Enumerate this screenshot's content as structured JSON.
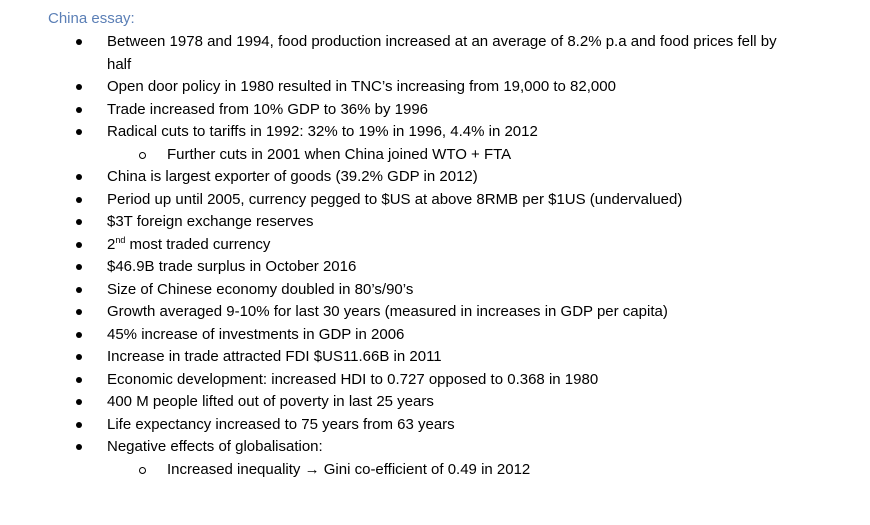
{
  "heading": "China essay:",
  "items": [
    {
      "level": 1,
      "text": "Between 1978 and 1994, food production increased at an average of 8.2% p.a and food prices fell by half"
    },
    {
      "level": 1,
      "text": "Open door policy in 1980 resulted in TNC’s increasing from 19,000 to 82,000"
    },
    {
      "level": 1,
      "text": "Trade increased from 10% GDP to 36% by 1996"
    },
    {
      "level": 1,
      "text": "Radical cuts to tariffs in 1992: 32% to 19% in 1996, 4.4% in 2012"
    },
    {
      "level": 2,
      "text": "Further cuts in 2001 when China joined WTO  + FTA"
    },
    {
      "level": 1,
      "text": "China is largest exporter of goods (39.2% GDP in 2012)"
    },
    {
      "level": 1,
      "text": "Period up until 2005, currency pegged to $US at above 8RMB per $1US (undervalued)"
    },
    {
      "level": 1,
      "text": "$3T foreign exchange reserves"
    },
    {
      "level": 1,
      "pre": "2",
      "sup": "nd",
      "text": " most traded currency"
    },
    {
      "level": 1,
      "text": "$46.9B trade surplus in October 2016"
    },
    {
      "level": 1,
      "text": "Size of Chinese economy doubled in 80’s/90’s"
    },
    {
      "level": 1,
      "text": "Growth averaged 9-10% for last 30 years (measured in increases in GDP per capita)"
    },
    {
      "level": 1,
      "text": "45% increase of investments in GDP in 2006"
    },
    {
      "level": 1,
      "text": "Increase in trade attracted FDI $US11.66B in 2011"
    },
    {
      "level": 1,
      "text": "Economic development: increased HDI to 0.727 opposed to 0.368 in 1980"
    },
    {
      "level": 1,
      "text": "400 M people lifted out of poverty in last 25 years"
    },
    {
      "level": 1,
      "text": "Life expectancy increased to 75 years from 63 years"
    },
    {
      "level": 1,
      "text": "Negative effects of globalisation:"
    },
    {
      "level": 2,
      "text": "Increased inequality → Gini co-efficient of 0.49 in 2012"
    }
  ]
}
